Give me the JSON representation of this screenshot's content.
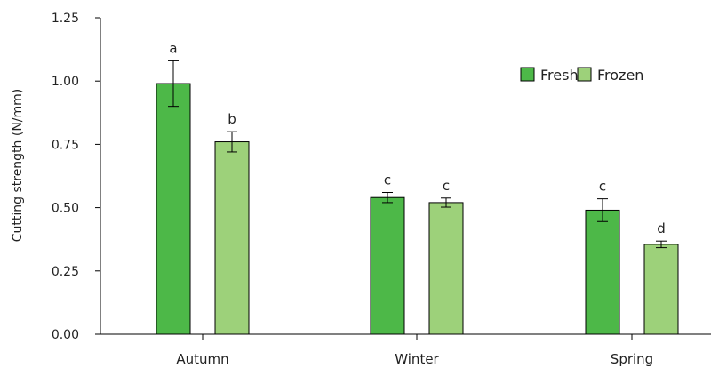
{
  "chart_data": {
    "type": "bar",
    "title": "",
    "xlabel": "",
    "ylabel": "Cutting strength (N/mm)",
    "categories": [
      "Autumn",
      "Winter",
      "Spring"
    ],
    "series": [
      {
        "name": "Fresh",
        "color": "#4db848",
        "values": [
          0.99,
          0.54,
          0.49
        ],
        "errors": [
          0.09,
          0.02,
          0.045
        ],
        "significance": [
          "a",
          "c",
          "c"
        ]
      },
      {
        "name": "Frozen",
        "color": "#9dd17a",
        "values": [
          0.76,
          0.52,
          0.355
        ],
        "errors": [
          0.04,
          0.018,
          0.013
        ],
        "significance": [
          "b",
          "c",
          "d"
        ]
      }
    ],
    "ylim": [
      0,
      1.25
    ],
    "yticks": [
      "0.00",
      "0.25",
      "0.50",
      "0.75",
      "1.00",
      "1.25"
    ],
    "grid": false,
    "legend_position": "top-right"
  }
}
